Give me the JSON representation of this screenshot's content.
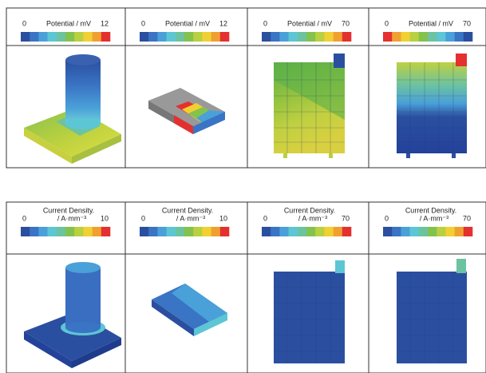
{
  "colormap": [
    "#2b4fa0",
    "#3a74c4",
    "#4aa0d8",
    "#5cc6d4",
    "#6cc3a0",
    "#84c24e",
    "#b9d040",
    "#f1d032",
    "#f0a030",
    "#e53030"
  ],
  "rows": [
    {
      "panels": [
        {
          "min": "0",
          "label": "Potential / mV",
          "max": "12"
        },
        {
          "min": "0",
          "label": "Potential / mV",
          "max": "12"
        },
        {
          "min": "0",
          "label": "Potential / mV",
          "max": "70"
        },
        {
          "min": "0",
          "label": "Potential / mV",
          "max": "70",
          "reversed": true
        }
      ]
    },
    {
      "panels": [
        {
          "min": "0",
          "label": [
            "Current Density.",
            "/ A·mm⁻³"
          ],
          "max": "10"
        },
        {
          "min": "0",
          "label": [
            "Current Density.",
            "/ A·mm⁻³"
          ],
          "max": "10"
        },
        {
          "min": "0",
          "label": [
            "Current Density.",
            "/ A·mm⁻³"
          ],
          "max": "70"
        },
        {
          "min": "0",
          "label": [
            "Current Density.",
            "/ A·mm⁻³"
          ],
          "max": "70"
        }
      ]
    }
  ]
}
